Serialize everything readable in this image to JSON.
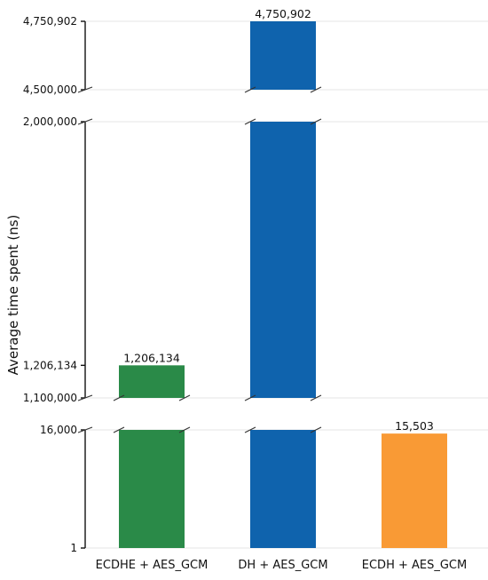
{
  "chart_data": {
    "type": "bar",
    "title": "",
    "ylabel": "Average time spent  (ns)",
    "xlabel": "",
    "scale": "broken-axis",
    "grid": true,
    "categories": [
      "ECDHE + AES_GCM",
      "DH + AES_GCM",
      "ECDH + AES_GCM"
    ],
    "values": [
      1206134,
      4750902,
      15503
    ],
    "data_labels": [
      "1,206,134",
      "4,750,902",
      "15,503"
    ],
    "colors": [
      "#2a8a48",
      "#0f63ad",
      "#f99a35"
    ],
    "y_segments": [
      {
        "ylim": [
          1,
          16000
        ],
        "ticks": [
          1,
          16000
        ],
        "tick_labels": [
          "1",
          "16,000"
        ]
      },
      {
        "ylim": [
          1100000,
          2000000
        ],
        "ticks": [
          1100000,
          1206134,
          2000000
        ],
        "tick_labels": [
          "1,100,000",
          "1,206,134",
          "2,000,000"
        ]
      },
      {
        "ylim": [
          4500000,
          4750902
        ],
        "ticks": [
          4500000,
          4750902
        ],
        "tick_labels": [
          "4,500,000",
          "4,750,902"
        ]
      }
    ]
  }
}
